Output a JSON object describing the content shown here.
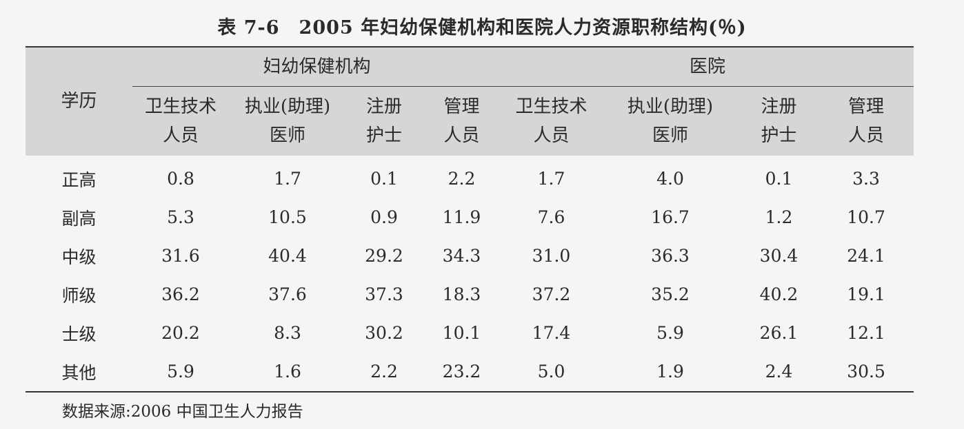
{
  "title": "表 7-6　2005 年妇幼保健机构和医院人力资源职称结构(％)",
  "table": {
    "row_header": "学历",
    "groups": [
      "妇幼保健机构",
      "医院"
    ],
    "columns": [
      {
        "line1": "卫生技术",
        "line2": "人员"
      },
      {
        "line1": "执业(助理)",
        "line2": "医师"
      },
      {
        "line1": "注册",
        "line2": "护士"
      },
      {
        "line1": "管理",
        "line2": "人员"
      },
      {
        "line1": "卫生技术",
        "line2": "人员"
      },
      {
        "line1": "执业(助理)",
        "line2": "医师"
      },
      {
        "line1": "注册",
        "line2": "护士"
      },
      {
        "line1": "管理",
        "line2": "人员"
      }
    ],
    "rows": [
      {
        "label": "正高",
        "values": [
          "0.8",
          "1.7",
          "0.1",
          "2.2",
          "1.7",
          "4.0",
          "0.1",
          "3.3"
        ]
      },
      {
        "label": "副高",
        "values": [
          "5.3",
          "10.5",
          "0.9",
          "11.9",
          "7.6",
          "16.7",
          "1.2",
          "10.7"
        ]
      },
      {
        "label": "中级",
        "values": [
          "31.6",
          "40.4",
          "29.2",
          "34.3",
          "31.0",
          "36.3",
          "30.4",
          "24.1"
        ]
      },
      {
        "label": "师级",
        "values": [
          "36.2",
          "37.6",
          "37.3",
          "18.3",
          "37.2",
          "35.2",
          "40.2",
          "19.1"
        ]
      },
      {
        "label": "士级",
        "values": [
          "20.2",
          "8.3",
          "30.2",
          "10.1",
          "17.4",
          "5.9",
          "26.1",
          "12.1"
        ]
      },
      {
        "label": "其他",
        "values": [
          "5.9",
          "1.6",
          "2.2",
          "23.2",
          "5.0",
          "1.9",
          "2.4",
          "30.5"
        ]
      }
    ]
  },
  "source": "数据来源:2006 中国卫生人力报告"
}
